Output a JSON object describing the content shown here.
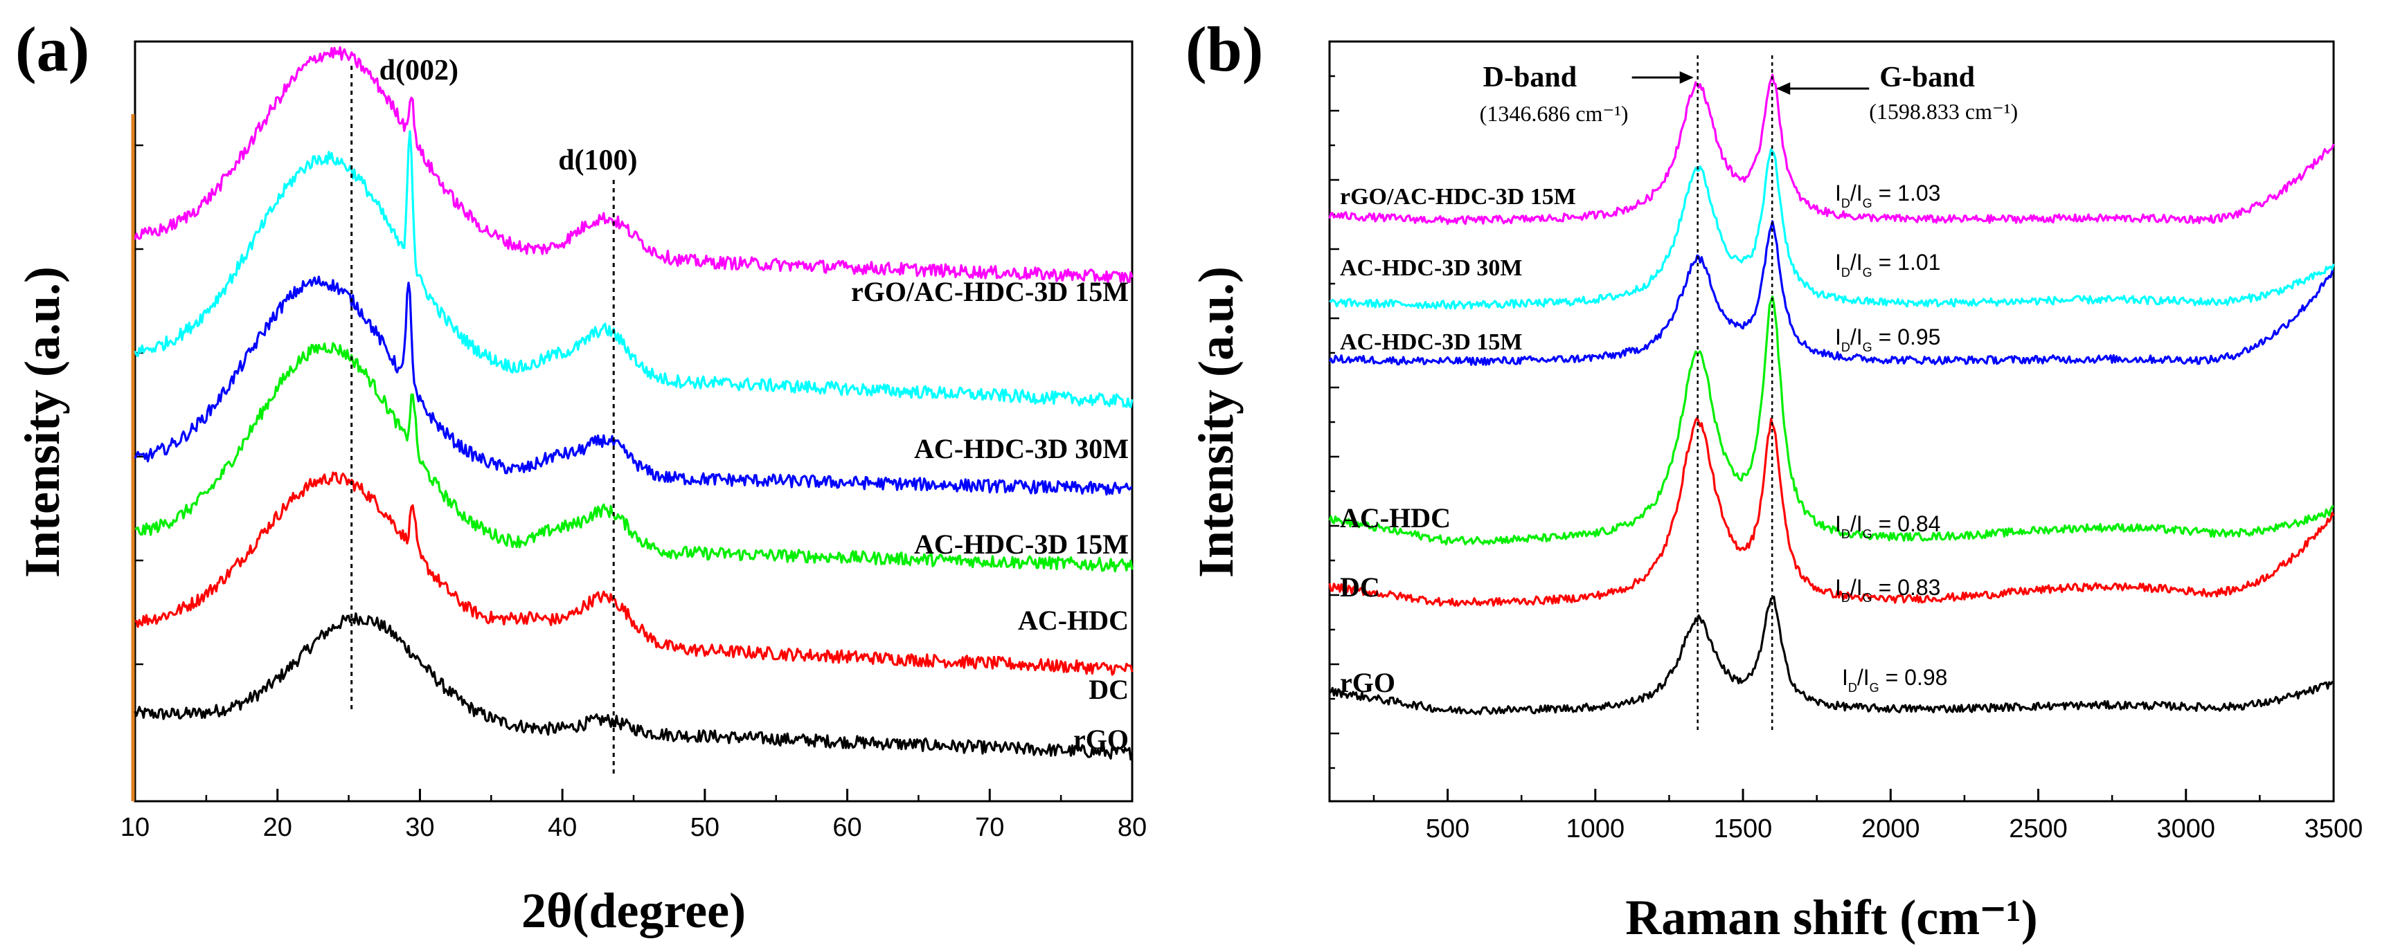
{
  "figure": {
    "panel_a_letter": "(a)",
    "panel_b_letter": "(b)"
  },
  "chart_data": [
    {
      "type": "line",
      "panel": "(a)",
      "title": "",
      "xlabel": "2θ(degree)",
      "ylabel": "Intensity (a.u.)",
      "xlim": [
        10,
        80
      ],
      "ylim": [
        0,
        9.5
      ],
      "xticks": [
        10,
        20,
        30,
        40,
        50,
        60,
        70,
        80
      ],
      "annotations": [
        {
          "text": "d(002)",
          "x": 25.2
        },
        {
          "text": "d(100)",
          "x": 43.6
        }
      ],
      "series": [
        {
          "name": "rGO",
          "color": "#000000",
          "offset": 1.0,
          "peaks": [
            {
              "x": 25.8,
              "h": 1.3,
              "w": 4.2
            },
            {
              "x": 43,
              "h": 0.15,
              "w": 1.5
            }
          ],
          "base": 0.1,
          "tail": -0.5,
          "sharp": []
        },
        {
          "name": "DC",
          "color": "#ff0000",
          "offset": 2.1,
          "peaks": [
            {
              "x": 24,
              "h": 1.95,
              "w": 5.2
            },
            {
              "x": 43,
              "h": 0.6,
              "w": 1.8
            },
            {
              "x": 38,
              "h": 0.25,
              "w": 2
            }
          ],
          "base": 0.1,
          "tail": -0.55,
          "sharp": [
            {
              "x": 29.5,
              "h": 0.55
            }
          ]
        },
        {
          "name": "AC-HDC",
          "color": "#00ee00",
          "offset": 3.1,
          "peaks": [
            {
              "x": 23.5,
              "h": 2.45,
              "w": 5.0
            },
            {
              "x": 43,
              "h": 0.5,
              "w": 1.6
            },
            {
              "x": 39.5,
              "h": 0.2,
              "w": 1.2
            }
          ],
          "base": 0.2,
          "tail": -0.35,
          "sharp": [
            {
              "x": 29.5,
              "h": 0.7
            }
          ]
        },
        {
          "name": "AC-HDC-3D 15M",
          "color": "#0000ff",
          "offset": 4.0,
          "peaks": [
            {
              "x": 23,
              "h": 2.35,
              "w": 5.0
            },
            {
              "x": 43,
              "h": 0.45,
              "w": 1.6
            },
            {
              "x": 39.5,
              "h": 0.2,
              "w": 1.2
            }
          ],
          "base": 0.2,
          "tail": -0.3,
          "sharp": [
            {
              "x": 29.2,
              "h": 1.3
            }
          ]
        },
        {
          "name": "AC-HDC-3D 30M",
          "color": "#00ffff",
          "offset": 5.3,
          "peaks": [
            {
              "x": 23.5,
              "h": 2.6,
              "w": 5.0
            },
            {
              "x": 43,
              "h": 0.6,
              "w": 1.6
            },
            {
              "x": 39.5,
              "h": 0.2,
              "w": 1.2
            }
          ],
          "base": 0.25,
          "tail": -0.55,
          "sharp": [
            {
              "x": 29.3,
              "h": 1.7
            }
          ]
        },
        {
          "name": "rGO/AC-HDC-3D 15M",
          "color": "#ff00ff",
          "offset": 6.7,
          "peaks": [
            {
              "x": 24,
              "h": 2.45,
              "w": 5.2
            },
            {
              "x": 43,
              "h": 0.5,
              "w": 2.0
            }
          ],
          "base": 0.3,
          "tail": -0.45,
          "sharp": [
            {
              "x": 29.4,
              "h": 0.5
            }
          ]
        }
      ]
    },
    {
      "type": "line",
      "panel": "(b)",
      "title": "",
      "xlabel": "Raman shift (cm⁻¹)",
      "ylabel": "Intensity (a.u.)",
      "xlim": [
        100,
        3500
      ],
      "ylim": [
        0,
        13.5
      ],
      "xticks": [
        500,
        1000,
        1500,
        2000,
        2500,
        3000,
        3500
      ],
      "bands": [
        {
          "name": "D-band",
          "position_label": "(1346.686 cm⁻¹)",
          "x": 1346.686
        },
        {
          "name": "G-band",
          "position_label": "(1598.833 cm⁻¹)",
          "x": 1598.833
        }
      ],
      "series": [
        {
          "name": "rGO",
          "color": "#000000",
          "offset": 1.6,
          "d": 1.6,
          "g": 1.9,
          "ratio": "0.98",
          "lowslope": 0.35,
          "hump": 0.1,
          "highrise": 0.5
        },
        {
          "name": "DC",
          "color": "#ff0000",
          "offset": 3.5,
          "d": 3.2,
          "g": 3.0,
          "ratio": "0.83",
          "lowslope": 0.3,
          "hump": 0.3,
          "highrise": 1.6
        },
        {
          "name": "AC-HDC",
          "color": "#00ee00",
          "offset": 4.6,
          "d": 3.3,
          "g": 4.1,
          "ratio": "0.84",
          "lowslope": 0.4,
          "hump": 0.25,
          "highrise": 0.55
        },
        {
          "name": "AC-HDC-3D 15M",
          "color": "#0000ff",
          "offset": 7.8,
          "d": 1.8,
          "g": 2.3,
          "ratio": "0.95",
          "lowslope": 0.05,
          "hump": 0.05,
          "highrise": 1.6
        },
        {
          "name": "AC-HDC-3D 30M",
          "color": "#00ffff",
          "offset": 8.8,
          "d": 2.4,
          "g": 2.6,
          "ratio": "1.01",
          "lowslope": 0.05,
          "hump": 0.1,
          "highrise": 0.7
        },
        {
          "name": "rGO/AC-HDC-3D 15M",
          "color": "#ff00ff",
          "offset": 10.3,
          "d": 2.4,
          "g": 2.4,
          "ratio": "1.03",
          "lowslope": 0.1,
          "hump": 0.05,
          "highrise": 1.4
        }
      ]
    }
  ],
  "ratio_prefix": "I",
  "ratio_sub_d": "D",
  "ratio_sub_g": "G",
  "ratio_sep": "/I",
  "ratio_eq": " = "
}
